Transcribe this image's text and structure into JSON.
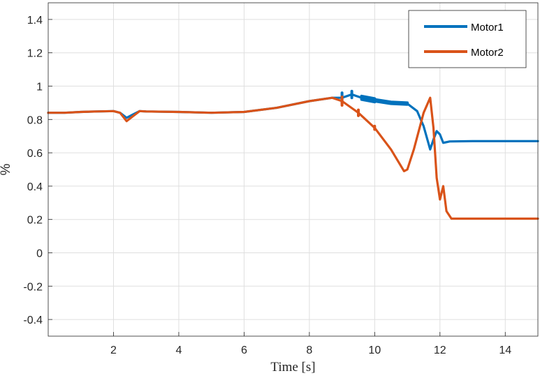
{
  "chart_data": {
    "type": "line",
    "title": "",
    "xlabel": "Time [s]",
    "ylabel": "%",
    "xlim": [
      0,
      15
    ],
    "ylim": [
      -0.5,
      1.5
    ],
    "xticks": [
      "2",
      "4",
      "6",
      "8",
      "10",
      "12",
      "14"
    ],
    "yticks": [
      "-0.4",
      "-0.2",
      "0",
      "0.2",
      "0.4",
      "0.6",
      "0.8",
      "1",
      "1.2",
      "1.4"
    ],
    "grid": true,
    "legend_position": "top-right",
    "colors": {
      "Motor1": "#0072BD",
      "Motor2": "#D95319"
    },
    "series": [
      {
        "name": "Motor1",
        "points": [
          [
            0,
            0.84
          ],
          [
            0.5,
            0.84
          ],
          [
            1,
            0.845
          ],
          [
            1.5,
            0.848
          ],
          [
            2,
            0.85
          ],
          [
            2.2,
            0.84
          ],
          [
            2.4,
            0.81
          ],
          [
            2.6,
            0.83
          ],
          [
            2.8,
            0.85
          ],
          [
            3,
            0.848
          ],
          [
            4,
            0.845
          ],
          [
            5,
            0.84
          ],
          [
            6,
            0.845
          ],
          [
            7,
            0.87
          ],
          [
            8,
            0.91
          ],
          [
            8.7,
            0.93
          ],
          [
            9,
            0.93
          ],
          [
            9.3,
            0.95
          ],
          [
            9.6,
            0.93
          ],
          [
            10,
            0.915
          ],
          [
            10.5,
            0.9
          ],
          [
            11,
            0.895
          ],
          [
            11.3,
            0.85
          ],
          [
            11.5,
            0.76
          ],
          [
            11.7,
            0.62
          ],
          [
            11.8,
            0.68
          ],
          [
            11.9,
            0.73
          ],
          [
            12.0,
            0.71
          ],
          [
            12.1,
            0.66
          ],
          [
            12.3,
            0.668
          ],
          [
            13,
            0.67
          ],
          [
            14,
            0.67
          ],
          [
            15,
            0.67
          ]
        ],
        "band": [
          [
            9.0,
            9.2,
            0.06
          ],
          [
            9.2,
            9.5,
            0.04
          ],
          [
            9.5,
            10.0,
            0.02
          ],
          [
            10.0,
            11.0,
            0.01
          ]
        ]
      },
      {
        "name": "Motor2",
        "points": [
          [
            0,
            0.84
          ],
          [
            0.5,
            0.84
          ],
          [
            1,
            0.845
          ],
          [
            1.5,
            0.848
          ],
          [
            2,
            0.85
          ],
          [
            2.2,
            0.84
          ],
          [
            2.4,
            0.79
          ],
          [
            2.6,
            0.82
          ],
          [
            2.8,
            0.85
          ],
          [
            3,
            0.848
          ],
          [
            4,
            0.845
          ],
          [
            5,
            0.84
          ],
          [
            6,
            0.845
          ],
          [
            7,
            0.87
          ],
          [
            8,
            0.91
          ],
          [
            8.7,
            0.93
          ],
          [
            9,
            0.91
          ],
          [
            9.5,
            0.84
          ],
          [
            10,
            0.75
          ],
          [
            10.5,
            0.62
          ],
          [
            10.9,
            0.49
          ],
          [
            11.0,
            0.5
          ],
          [
            11.2,
            0.62
          ],
          [
            11.5,
            0.84
          ],
          [
            11.7,
            0.93
          ],
          [
            11.8,
            0.75
          ],
          [
            11.9,
            0.45
          ],
          [
            12.0,
            0.32
          ],
          [
            12.1,
            0.4
          ],
          [
            12.2,
            0.25
          ],
          [
            12.35,
            0.205
          ],
          [
            13,
            0.205
          ],
          [
            14,
            0.205
          ],
          [
            15,
            0.205
          ]
        ],
        "band": [
          [
            9.0,
            9.3,
            0.05
          ],
          [
            9.3,
            9.8,
            0.035
          ],
          [
            9.8,
            10.3,
            0.02
          ]
        ]
      }
    ]
  }
}
